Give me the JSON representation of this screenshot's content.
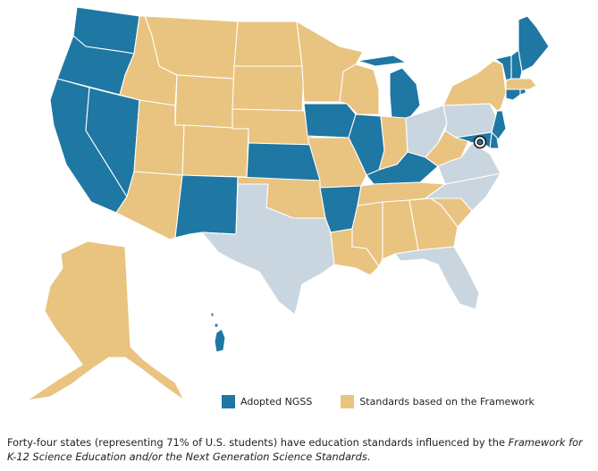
{
  "colors": {
    "adopted": "#1f77a3",
    "framework": "#e9c380",
    "neither": "#c9d6e0",
    "border": "#ffffff"
  },
  "legend": {
    "adopted_label": "Adopted NGSS",
    "framework_label": "Standards based on the Framework"
  },
  "caption": {
    "text_before": "Forty-four states (representing 71% of U.S. students) have education standards influenced by the ",
    "italic_1": "Framework for K-12 Science Education",
    "text_between": " and/or the ",
    "italic_2": "Next Generation Science Standards",
    "text_after": "."
  },
  "states": {
    "WA": "adopted",
    "OR": "adopted",
    "CA": "adopted",
    "NV": "adopted",
    "ID": "framework",
    "MT": "framework",
    "WY": "framework",
    "UT": "framework",
    "AZ": "framework",
    "CO": "framework",
    "NM": "adopted",
    "ND": "framework",
    "SD": "framework",
    "NE": "framework",
    "KS": "adopted",
    "OK": "framework",
    "TX": "neither",
    "MN": "framework",
    "IA": "adopted",
    "MO": "framework",
    "AR": "adopted",
    "LA": "framework",
    "WI": "framework",
    "IL": "adopted",
    "MI": "adopted",
    "IN": "framework",
    "OH": "neither",
    "KY": "adopted",
    "TN": "framework",
    "MS": "framework",
    "AL": "framework",
    "GA": "framework",
    "FL": "neither",
    "SC": "framework",
    "NC": "neither",
    "VA": "neither",
    "WV": "framework",
    "PA": "neither",
    "NY": "framework",
    "VT": "adopted",
    "NH": "adopted",
    "ME": "adopted",
    "MA": "framework",
    "RI": "adopted",
    "CT": "adopted",
    "NJ": "adopted",
    "DE": "adopted",
    "MD": "adopted",
    "DC": "adopted",
    "AK": "framework",
    "HI": "adopted"
  }
}
